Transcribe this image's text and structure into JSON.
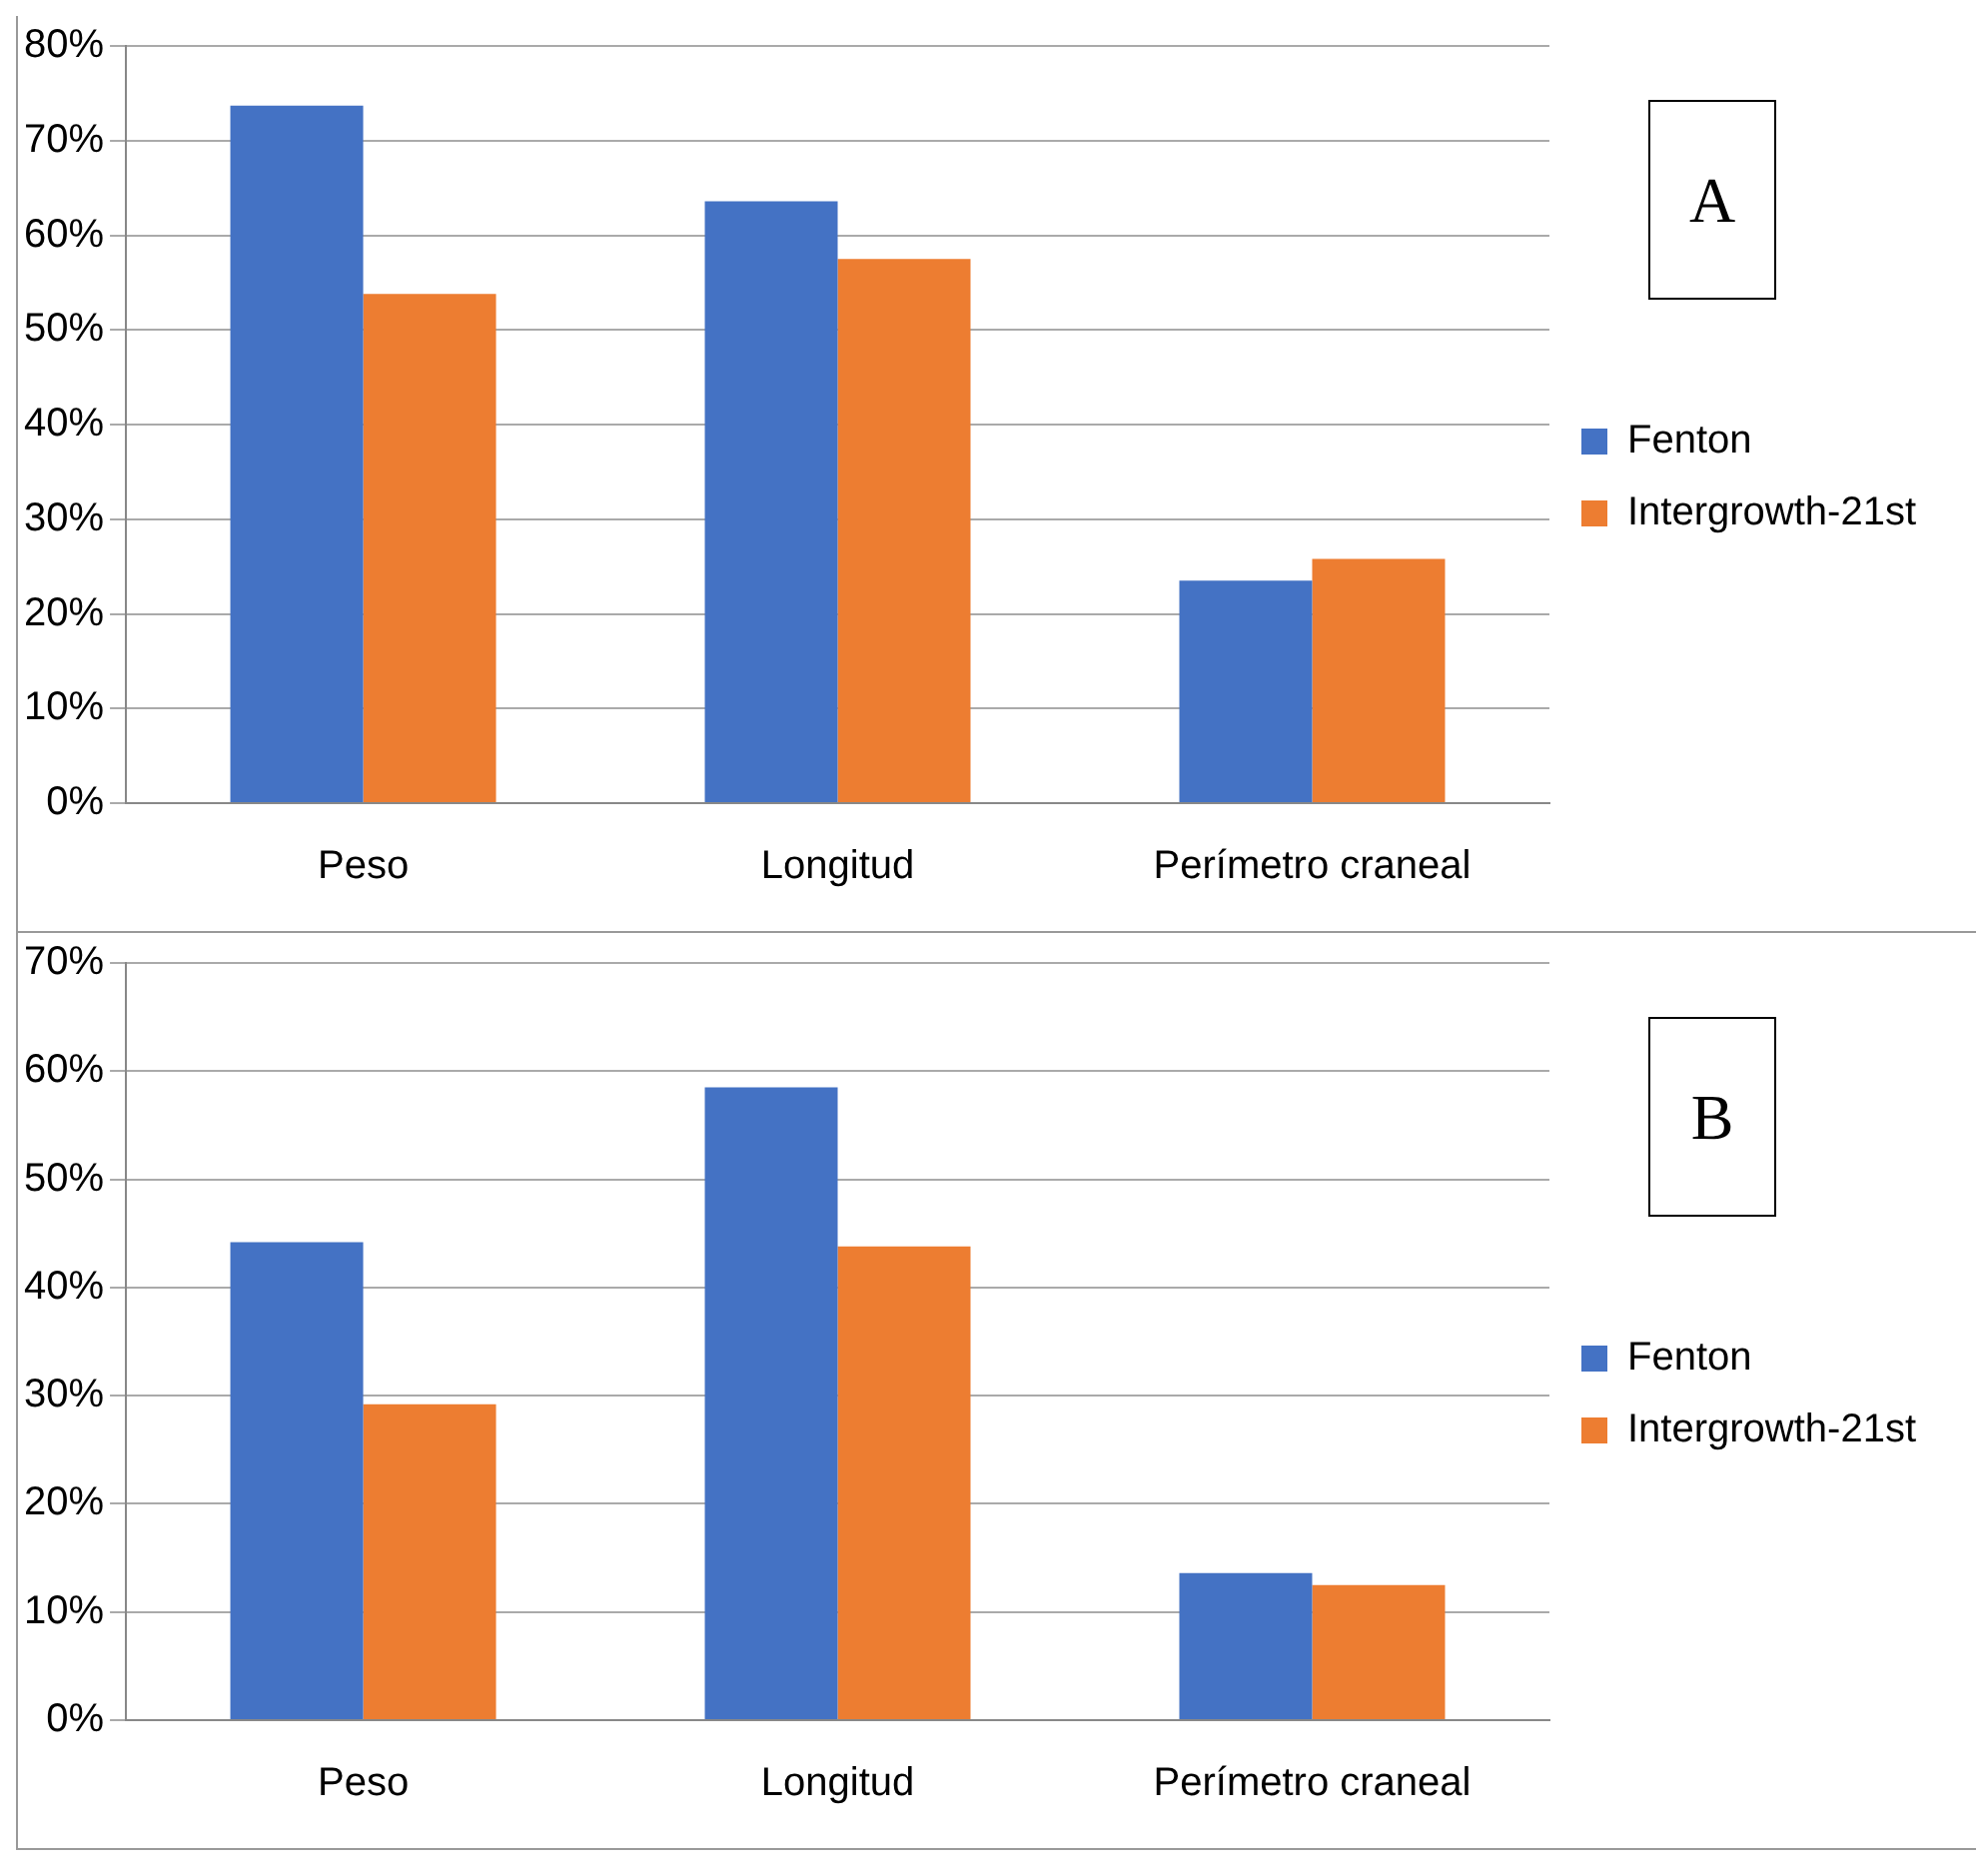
{
  "chart_data": [
    {
      "type": "bar",
      "categories": [
        "Peso",
        "Longitud",
        "Perímetro craneal"
      ],
      "series": [
        {
          "name": "Fenton",
          "color": "#4472c4",
          "values": [
            73.7,
            63.6,
            23.5
          ]
        },
        {
          "name": "Intergrowth-21st",
          "color": "#ed7d31",
          "values": [
            53.8,
            57.5,
            25.8
          ]
        }
      ],
      "ylim": [
        0,
        80
      ],
      "yticks": [
        {
          "value": 0,
          "label": "0%"
        },
        {
          "value": 10,
          "label": "10%"
        },
        {
          "value": 20,
          "label": "20%"
        },
        {
          "value": 30,
          "label": "30%"
        },
        {
          "value": 40,
          "label": "40%"
        },
        {
          "value": 50,
          "label": "50%"
        },
        {
          "value": 60,
          "label": "60%"
        },
        {
          "value": 70,
          "label": "70%"
        },
        {
          "value": 80,
          "label": "80%"
        }
      ],
      "grid": "y",
      "legend": "right",
      "annotations": [
        "A"
      ]
    },
    {
      "type": "bar",
      "categories": [
        "Peso",
        "Longitud",
        "Perímetro craneal"
      ],
      "series": [
        {
          "name": "Fenton",
          "color": "#4472c4",
          "values": [
            44.2,
            58.5,
            13.6
          ]
        },
        {
          "name": "Intergrowth-21st",
          "color": "#ed7d31",
          "values": [
            29.2,
            43.8,
            12.5
          ]
        }
      ],
      "ylim": [
        0,
        70
      ],
      "yticks": [
        {
          "value": 0,
          "label": "0%"
        },
        {
          "value": 10,
          "label": "10%"
        },
        {
          "value": 20,
          "label": "20%"
        },
        {
          "value": 30,
          "label": "30%"
        },
        {
          "value": 40,
          "label": "40%"
        },
        {
          "value": 50,
          "label": "50%"
        },
        {
          "value": 60,
          "label": "60%"
        },
        {
          "value": 70,
          "label": "70%"
        }
      ],
      "grid": "y",
      "legend": "right",
      "annotations": [
        "B"
      ]
    }
  ]
}
